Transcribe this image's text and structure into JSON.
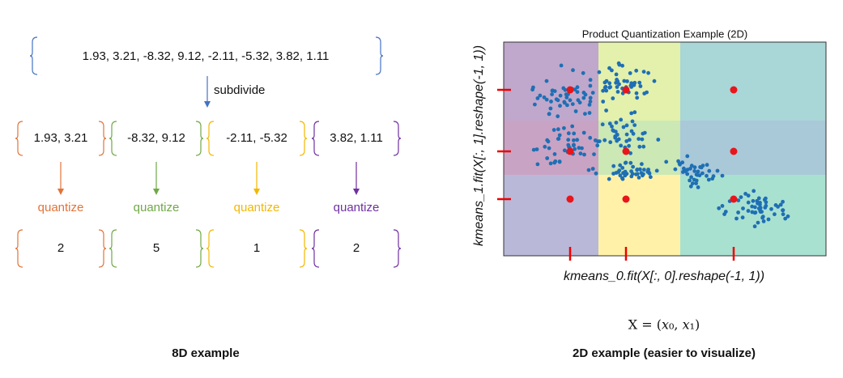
{
  "left": {
    "vector": "1.93,  3.21,  -8.32,  9.12,  -2.11,  -5.32,  3.82,  1.11",
    "subdivide": "subdivide",
    "subvectors": [
      "1.93,  3.21",
      "-8.32,  9.12",
      "-2.11,  -5.32",
      "3.82,  1.11"
    ],
    "quantize": [
      "quantize",
      "quantize",
      "quantize",
      "quantize"
    ],
    "codes": [
      2,
      5,
      1,
      2
    ],
    "caption": "8D example"
  },
  "right": {
    "title": "Product Quantization Example (2D)",
    "x_label": "kmeans_0.fit(X[:, 0].reshape(-1, 1))",
    "y_label": "kmeans_1.fit(X[:, 1].reshape(-1, 1))",
    "formula": "X = (𝑥₀, 𝑥₁)",
    "caption": "2D example (easier to visualize)"
  }
}
